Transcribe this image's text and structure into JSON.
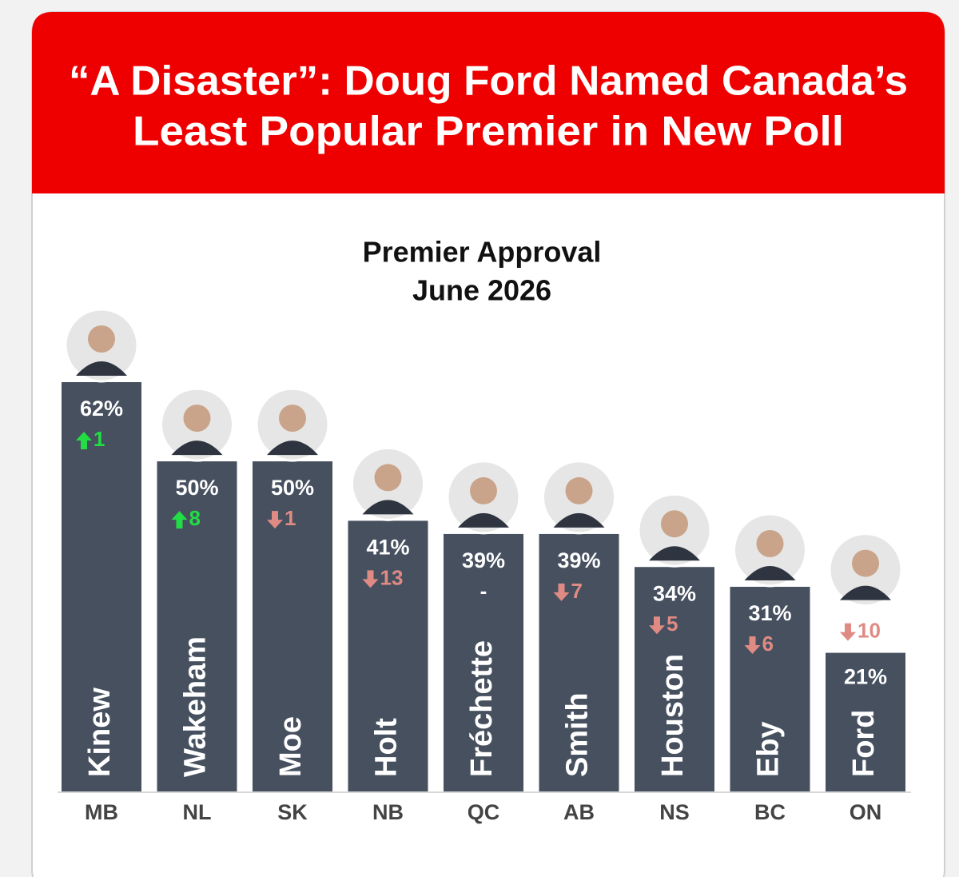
{
  "header": {
    "title_lines": [
      "“A Disaster”: Doug Ford Named Canada’s",
      "Least Popular Premier in New Poll"
    ]
  },
  "chart_data": {
    "type": "bar",
    "title": "Premier Approval",
    "subtitle": "June 2026",
    "categories": [
      "MB",
      "NL",
      "SK",
      "NB",
      "QC",
      "AB",
      "NS",
      "BC",
      "ON"
    ],
    "names": [
      "Kinew",
      "Wakeham",
      "Moe",
      "Holt",
      "Fréchette",
      "Smith",
      "Houston",
      "Eby",
      "Ford"
    ],
    "values": [
      62,
      50,
      50,
      41,
      39,
      39,
      34,
      31,
      21
    ],
    "value_labels": [
      "62%",
      "50%",
      "50%",
      "41%",
      "39%",
      "39%",
      "34%",
      "31%",
      "21%"
    ],
    "changes": [
      1,
      8,
      -1,
      -13,
      null,
      -7,
      -5,
      -6,
      -10
    ],
    "change_labels": [
      "1",
      "8",
      "1",
      "13",
      "-",
      "7",
      "5",
      "6",
      "10"
    ],
    "color": "#46505f",
    "up_color": "#22dd44",
    "down_color": "#e08a84"
  }
}
